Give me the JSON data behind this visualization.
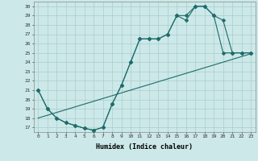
{
  "xlabel": "Humidex (Indice chaleur)",
  "background_color": "#cce8e8",
  "line_color": "#1e6b6b",
  "xlim": [
    -0.5,
    23.5
  ],
  "ylim": [
    16.5,
    30.5
  ],
  "xticks": [
    0,
    1,
    2,
    3,
    4,
    5,
    6,
    7,
    8,
    9,
    10,
    11,
    12,
    13,
    14,
    15,
    16,
    17,
    18,
    19,
    20,
    21,
    22,
    23
  ],
  "yticks": [
    17,
    18,
    19,
    20,
    21,
    22,
    23,
    24,
    25,
    26,
    27,
    28,
    29,
    30
  ],
  "line1_x": [
    0,
    1,
    2,
    3,
    4,
    5,
    6,
    7,
    8,
    9,
    10,
    11,
    12,
    13,
    14,
    15,
    16,
    17,
    18,
    19,
    20,
    21,
    22,
    23
  ],
  "line1_y": [
    18.0,
    18.3,
    18.6,
    18.9,
    19.2,
    19.5,
    19.8,
    20.1,
    20.4,
    20.7,
    21.0,
    21.3,
    21.6,
    21.9,
    22.2,
    22.5,
    22.8,
    23.1,
    23.4,
    23.7,
    24.0,
    24.3,
    24.6,
    24.9
  ],
  "line2_x": [
    0,
    1,
    2,
    3,
    4,
    5,
    6,
    7,
    8,
    9,
    10,
    11,
    12,
    13,
    14,
    15,
    16,
    17,
    18,
    19,
    20,
    21,
    22,
    23
  ],
  "line2_y": [
    21,
    19,
    18,
    17.5,
    17.2,
    16.9,
    16.7,
    17,
    19.5,
    21.5,
    24,
    26.5,
    26.5,
    26.5,
    27,
    29,
    29,
    30,
    30,
    29,
    25,
    25,
    25,
    25
  ],
  "line3_x": [
    0,
    1,
    2,
    3,
    4,
    5,
    6,
    7,
    8,
    9,
    10,
    11,
    12,
    13,
    14,
    15,
    16,
    17,
    18,
    19,
    20,
    21,
    22,
    23
  ],
  "line3_y": [
    21,
    19,
    18,
    17.5,
    17.2,
    16.9,
    16.7,
    17,
    19.5,
    21.5,
    24,
    26.5,
    26.5,
    26.5,
    27,
    29,
    28.5,
    30,
    30,
    29,
    28.5,
    25,
    25,
    25
  ],
  "grid_color": "#aacece",
  "marker": "D",
  "marker_size": 2.5
}
